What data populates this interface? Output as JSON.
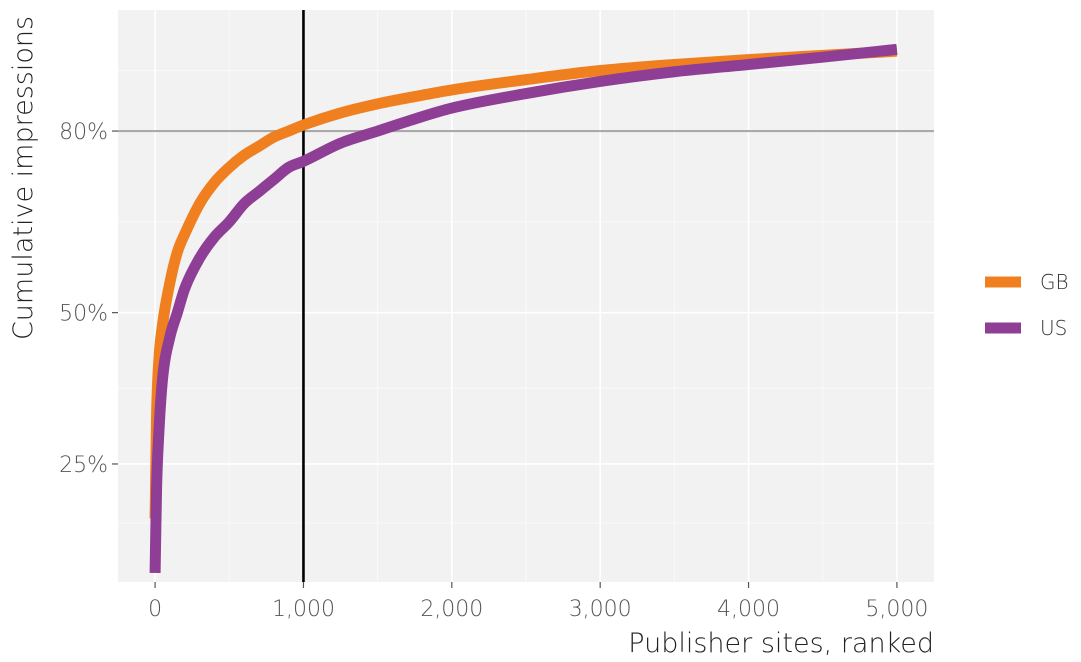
{
  "chart_data": {
    "type": "line",
    "title": "",
    "xlabel": "Publisher sites, ranked",
    "ylabel": "Cumulative impressions",
    "xlim": [
      -250,
      5250
    ],
    "ylim": [
      0.055,
      1.0
    ],
    "x_ticks": [
      {
        "value": 0,
        "label": "0"
      },
      {
        "value": 1000,
        "label": "1,000"
      },
      {
        "value": 2000,
        "label": "2,000"
      },
      {
        "value": 3000,
        "label": "3,000"
      },
      {
        "value": 4000,
        "label": "4,000"
      },
      {
        "value": 5000,
        "label": "5,000"
      }
    ],
    "y_ticks": [
      {
        "value": 0.25,
        "label": "25%"
      },
      {
        "value": 0.5,
        "label": "50%"
      },
      {
        "value": 0.8,
        "label": "80%"
      }
    ],
    "reference_lines": {
      "vertical_x": 1000,
      "horizontal_y": 0.8
    },
    "grid": true,
    "legend_position": "right",
    "series": [
      {
        "name": "GB",
        "color": "#F07F20",
        "points": [
          [
            0,
            0.16
          ],
          [
            10,
            0.33
          ],
          [
            25,
            0.42
          ],
          [
            50,
            0.48
          ],
          [
            100,
            0.55
          ],
          [
            150,
            0.6
          ],
          [
            200,
            0.63
          ],
          [
            300,
            0.68
          ],
          [
            400,
            0.715
          ],
          [
            500,
            0.74
          ],
          [
            600,
            0.76
          ],
          [
            700,
            0.775
          ],
          [
            800,
            0.79
          ],
          [
            900,
            0.8
          ],
          [
            1000,
            0.81
          ],
          [
            1250,
            0.83
          ],
          [
            1500,
            0.845
          ],
          [
            1750,
            0.857
          ],
          [
            2000,
            0.868
          ],
          [
            2500,
            0.885
          ],
          [
            3000,
            0.9
          ],
          [
            3500,
            0.91
          ],
          [
            4000,
            0.918
          ],
          [
            4500,
            0.925
          ],
          [
            5000,
            0.932
          ]
        ]
      },
      {
        "name": "US",
        "color": "#8E3F95",
        "points": [
          [
            0,
            0.07
          ],
          [
            10,
            0.21
          ],
          [
            25,
            0.3
          ],
          [
            50,
            0.39
          ],
          [
            100,
            0.46
          ],
          [
            150,
            0.5
          ],
          [
            200,
            0.54
          ],
          [
            300,
            0.59
          ],
          [
            400,
            0.625
          ],
          [
            500,
            0.65
          ],
          [
            600,
            0.68
          ],
          [
            700,
            0.7
          ],
          [
            800,
            0.72
          ],
          [
            900,
            0.74
          ],
          [
            1000,
            0.75
          ],
          [
            1250,
            0.78
          ],
          [
            1500,
            0.8
          ],
          [
            1750,
            0.82
          ],
          [
            2000,
            0.838
          ],
          [
            2500,
            0.862
          ],
          [
            3000,
            0.882
          ],
          [
            3500,
            0.898
          ],
          [
            4000,
            0.91
          ],
          [
            4500,
            0.922
          ],
          [
            5000,
            0.935
          ]
        ]
      }
    ]
  }
}
